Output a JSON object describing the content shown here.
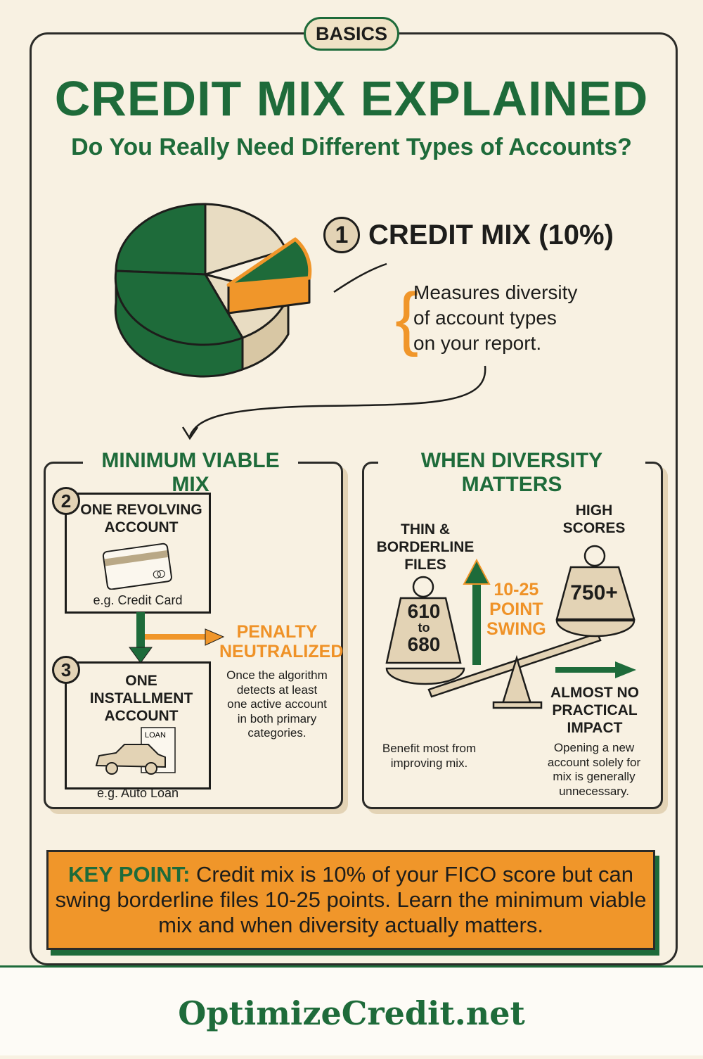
{
  "badge": "BASICS",
  "title": "CREDIT MIX EXPLAINED",
  "subtitle": "Do You Really Need Different Types of Accounts?",
  "colors": {
    "green": "#1e6b3a",
    "orange": "#f0962a",
    "tan": "#e3d3b5",
    "background": "#f8f1e2"
  },
  "section1": {
    "number": "1",
    "heading": "CREDIT MIX (10%)",
    "description": [
      "Measures diversity",
      "of account types",
      "on your report."
    ]
  },
  "minimum": {
    "title": "MINIMUM VIABLE MIX",
    "step2": {
      "number": "2",
      "title": [
        "ONE REVOLVING",
        "ACCOUNT"
      ],
      "example": "e.g. Credit Card",
      "icon": "credit-card-icon"
    },
    "step3": {
      "number": "3",
      "title": [
        "ONE INSTALLMENT",
        "ACCOUNT"
      ],
      "example": "e.g. Auto Loan",
      "icon": "car-loan-icon",
      "doc_label": "LOAN"
    },
    "result": {
      "title": [
        "PENALTY",
        "NEUTRALIZED"
      ],
      "text": [
        "Once the algorithm",
        "detects at least",
        "one active account",
        "in both primary",
        "categories."
      ]
    }
  },
  "diversity": {
    "title": "WHEN DIVERSITY MATTERS",
    "left": {
      "label": [
        "THIN &",
        "BORDERLINE",
        "FILES"
      ],
      "weight": [
        "610",
        "to",
        "680"
      ],
      "note": [
        "Benefit most from",
        "improving mix."
      ]
    },
    "swing": [
      "10-25",
      "POINT",
      "SWING"
    ],
    "right": {
      "label": [
        "HIGH",
        "SCORES"
      ],
      "weight": "750+",
      "impact": [
        "ALMOST NO",
        "PRACTICAL",
        "IMPACT"
      ],
      "note": [
        "Opening a new",
        "account solely for",
        "mix is generally",
        "unnecessary."
      ]
    }
  },
  "key_point": {
    "label": "KEY POINT:",
    "text": "Credit mix is 10% of your FICO score but can swing borderline files 10-25 points. Learn the minimum viable mix and when diversity actually matters."
  },
  "footer": "OptimizeCredit.net"
}
